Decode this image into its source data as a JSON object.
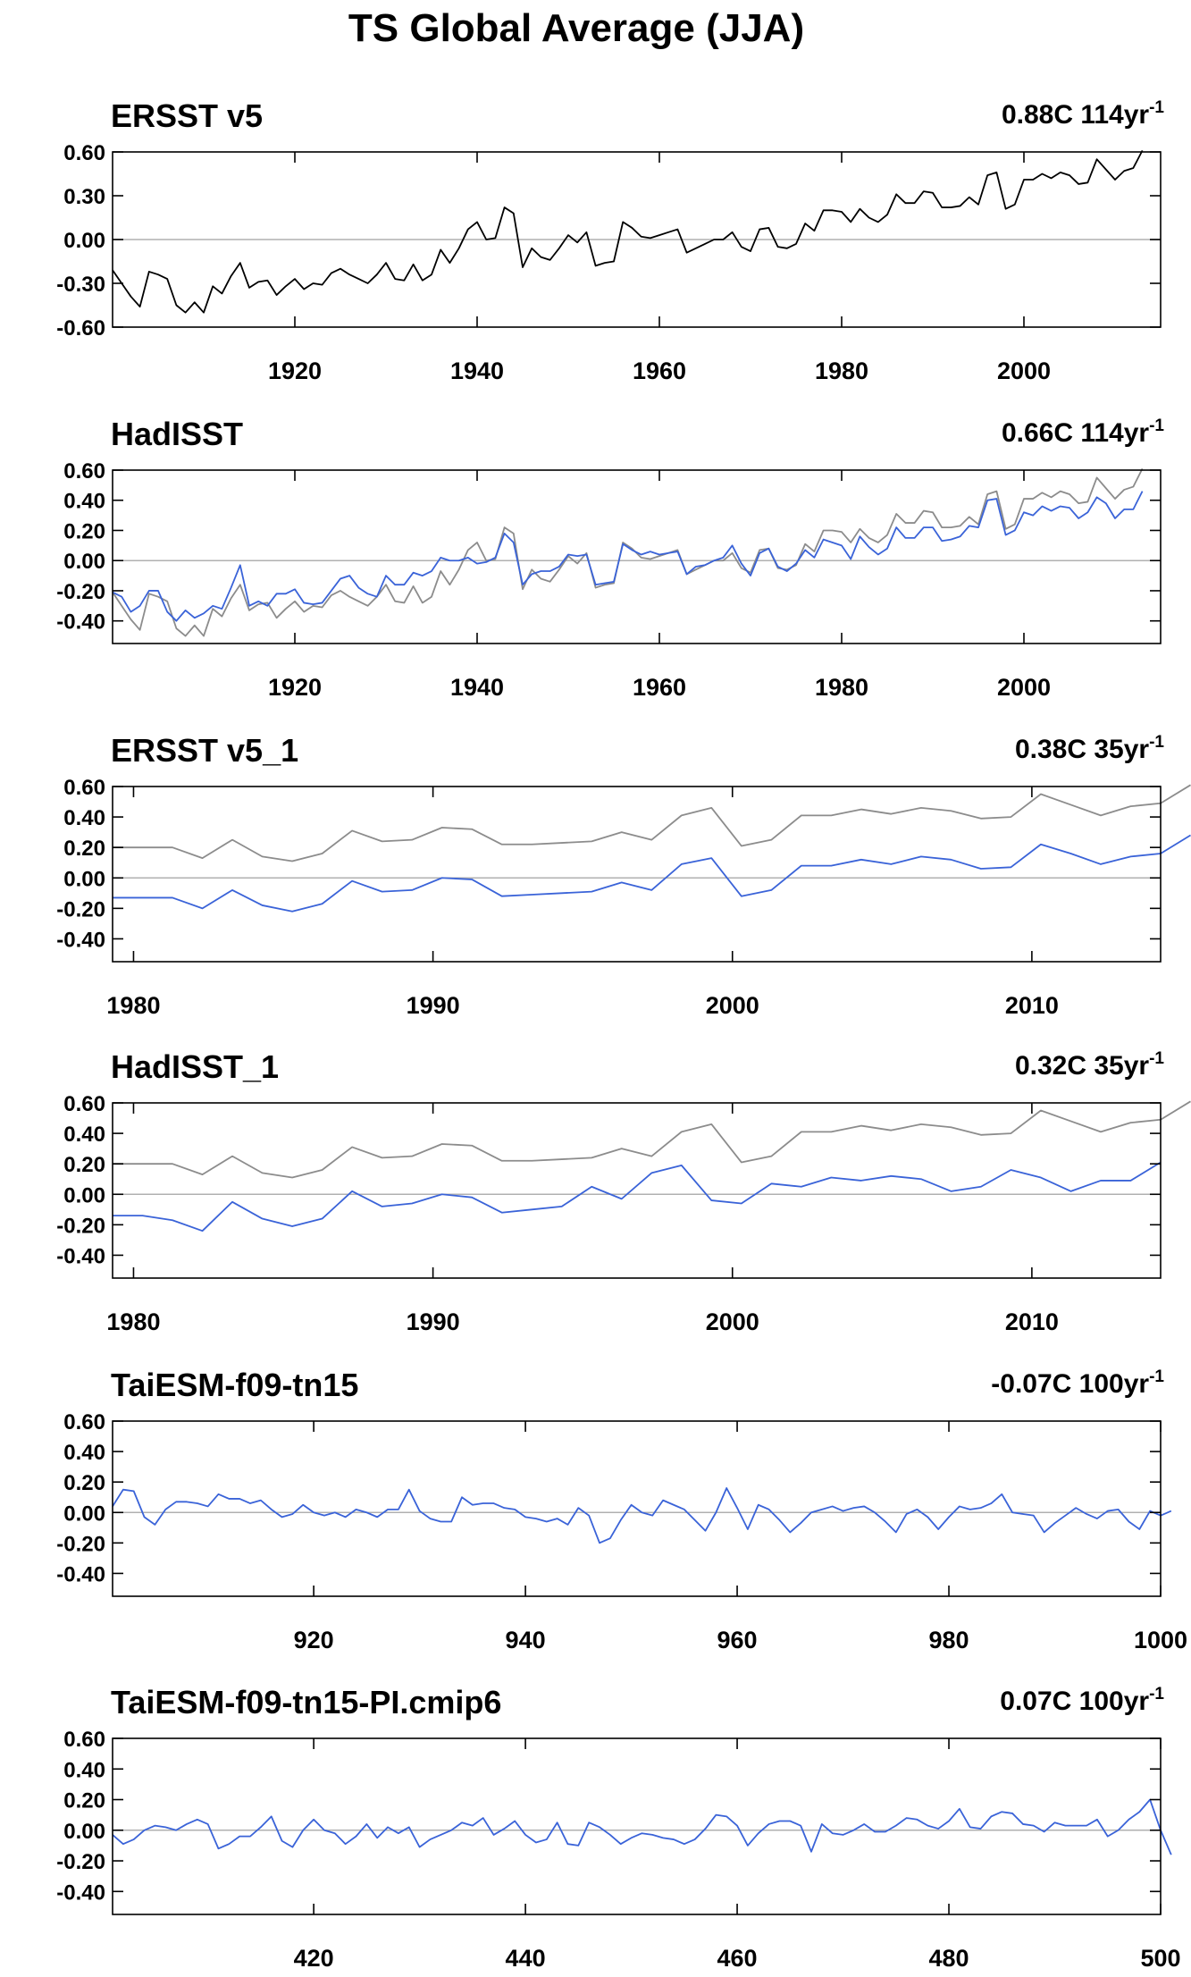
{
  "title": "TS Global Average (JJA)",
  "colors": {
    "obs": "#000000",
    "obs_ref": "#8c8c8c",
    "model": "#3a63d8",
    "zero_line": "#b0b0b0",
    "frame": "#000000"
  },
  "chart_data": [
    {
      "type": "line",
      "title": "ERSST v5",
      "trend": "0.88C 114yr",
      "trend_sup": "-1",
      "xlim": [
        1900,
        2015
      ],
      "ylim": [
        -0.6,
        0.6
      ],
      "yticks": [
        "0.60",
        "0.30",
        "0.00",
        "-0.30",
        "-0.60"
      ],
      "ytick_values": [
        0.6,
        0.3,
        0.0,
        -0.3,
        -0.6
      ],
      "xticks": [
        1920,
        1940,
        1960,
        1980,
        2000
      ],
      "series": [
        {
          "role": "obs",
          "x_start": 1900,
          "values": [
            -0.21,
            -0.3,
            -0.39,
            -0.46,
            -0.22,
            -0.24,
            -0.27,
            -0.45,
            -0.5,
            -0.43,
            -0.5,
            -0.32,
            -0.37,
            -0.25,
            -0.16,
            -0.33,
            -0.29,
            -0.28,
            -0.38,
            -0.32,
            -0.27,
            -0.34,
            -0.3,
            -0.31,
            -0.23,
            -0.2,
            -0.24,
            -0.27,
            -0.3,
            -0.24,
            -0.16,
            -0.27,
            -0.28,
            -0.17,
            -0.28,
            -0.24,
            -0.07,
            -0.16,
            -0.06,
            0.07,
            0.12,
            0.0,
            0.01,
            0.22,
            0.18,
            -0.19,
            -0.06,
            -0.12,
            -0.14,
            -0.06,
            0.03,
            -0.02,
            0.05,
            -0.18,
            -0.16,
            -0.15,
            0.12,
            0.08,
            0.02,
            0.01,
            0.03,
            0.05,
            0.07,
            -0.09,
            -0.06,
            -0.03,
            0.0,
            0.0,
            0.05,
            -0.05,
            -0.08,
            0.07,
            0.08,
            -0.05,
            -0.06,
            -0.03,
            0.11,
            0.06,
            0.2,
            0.2,
            0.19,
            0.12,
            0.21,
            0.15,
            0.12,
            0.17,
            0.31,
            0.25,
            0.25,
            0.33,
            0.32,
            0.22,
            0.22,
            0.23,
            0.29,
            0.24,
            0.44,
            0.46,
            0.21,
            0.24,
            0.41,
            0.41,
            0.45,
            0.42,
            0.46,
            0.44,
            0.38,
            0.39,
            0.55,
            0.48,
            0.41,
            0.47,
            0.49,
            0.61
          ]
        }
      ]
    },
    {
      "type": "line",
      "title": "HadISST",
      "trend": "0.66C 114yr",
      "trend_sup": "-1",
      "xlim": [
        1900,
        2015
      ],
      "ylim": [
        -0.55,
        0.6
      ],
      "yticks": [
        "0.60",
        "0.40",
        "0.20",
        "0.00",
        "-0.20",
        "-0.40"
      ],
      "ytick_values": [
        0.6,
        0.4,
        0.2,
        0.0,
        -0.2,
        -0.4
      ],
      "xticks": [
        1920,
        1940,
        1960,
        1980,
        2000
      ],
      "series": [
        {
          "role": "obs_ref",
          "x_start": 1900,
          "values": [
            -0.21,
            -0.3,
            -0.39,
            -0.46,
            -0.22,
            -0.24,
            -0.27,
            -0.45,
            -0.5,
            -0.43,
            -0.5,
            -0.32,
            -0.37,
            -0.25,
            -0.16,
            -0.33,
            -0.29,
            -0.28,
            -0.38,
            -0.32,
            -0.27,
            -0.34,
            -0.3,
            -0.31,
            -0.23,
            -0.2,
            -0.24,
            -0.27,
            -0.3,
            -0.24,
            -0.16,
            -0.27,
            -0.28,
            -0.17,
            -0.28,
            -0.24,
            -0.07,
            -0.16,
            -0.06,
            0.07,
            0.12,
            0.0,
            0.01,
            0.22,
            0.18,
            -0.19,
            -0.06,
            -0.12,
            -0.14,
            -0.06,
            0.03,
            -0.02,
            0.05,
            -0.18,
            -0.16,
            -0.15,
            0.12,
            0.08,
            0.02,
            0.01,
            0.03,
            0.05,
            0.07,
            -0.09,
            -0.06,
            -0.03,
            0.0,
            0.0,
            0.05,
            -0.05,
            -0.08,
            0.07,
            0.08,
            -0.05,
            -0.06,
            -0.03,
            0.11,
            0.06,
            0.2,
            0.2,
            0.19,
            0.12,
            0.21,
            0.15,
            0.12,
            0.17,
            0.31,
            0.25,
            0.25,
            0.33,
            0.32,
            0.22,
            0.22,
            0.23,
            0.29,
            0.24,
            0.44,
            0.46,
            0.21,
            0.24,
            0.41,
            0.41,
            0.45,
            0.42,
            0.46,
            0.44,
            0.38,
            0.39,
            0.55,
            0.48,
            0.41,
            0.47,
            0.49,
            0.61
          ]
        },
        {
          "role": "model",
          "x_start": 1900,
          "values": [
            -0.21,
            -0.24,
            -0.34,
            -0.3,
            -0.2,
            -0.2,
            -0.34,
            -0.4,
            -0.33,
            -0.38,
            -0.35,
            -0.3,
            -0.32,
            -0.18,
            -0.03,
            -0.3,
            -0.27,
            -0.3,
            -0.22,
            -0.22,
            -0.19,
            -0.28,
            -0.29,
            -0.28,
            -0.2,
            -0.12,
            -0.1,
            -0.18,
            -0.22,
            -0.24,
            -0.1,
            -0.16,
            -0.16,
            -0.08,
            -0.1,
            -0.07,
            0.02,
            0.0,
            0.0,
            0.02,
            -0.02,
            -0.01,
            0.02,
            0.18,
            0.12,
            -0.16,
            -0.09,
            -0.07,
            -0.07,
            -0.04,
            0.04,
            0.03,
            0.04,
            -0.16,
            -0.15,
            -0.14,
            0.11,
            0.07,
            0.04,
            0.06,
            0.04,
            0.05,
            0.06,
            -0.09,
            -0.04,
            -0.03,
            0.0,
            0.02,
            0.1,
            -0.02,
            -0.1,
            0.05,
            0.08,
            -0.04,
            -0.07,
            -0.02,
            0.07,
            0.02,
            0.14,
            0.12,
            0.1,
            0.01,
            0.16,
            0.09,
            0.04,
            0.08,
            0.22,
            0.15,
            0.15,
            0.22,
            0.22,
            0.13,
            0.14,
            0.16,
            0.23,
            0.22,
            0.4,
            0.41,
            0.17,
            0.2,
            0.32,
            0.3,
            0.36,
            0.33,
            0.36,
            0.35,
            0.28,
            0.32,
            0.42,
            0.38,
            0.28,
            0.34,
            0.34,
            0.46
          ]
        }
      ]
    },
    {
      "type": "line",
      "title": "ERSST v5_1",
      "trend": "0.38C 35yr",
      "trend_sup": "-1",
      "xlim": [
        1979.3,
        2014.3
      ],
      "ylim": [
        -0.55,
        0.6
      ],
      "yticks": [
        "0.60",
        "0.40",
        "0.20",
        "0.00",
        "-0.20",
        "-0.40"
      ],
      "ytick_values": [
        0.6,
        0.4,
        0.2,
        0.0,
        -0.2,
        -0.4
      ],
      "xticks": [
        1980,
        1990,
        2000,
        2010
      ],
      "series": [
        {
          "role": "obs_ref",
          "x_start": 1979.3,
          "values": [
            0.2,
            0.2,
            0.2,
            0.13,
            0.25,
            0.14,
            0.11,
            0.16,
            0.31,
            0.24,
            0.25,
            0.33,
            0.32,
            0.22,
            0.22,
            0.23,
            0.24,
            0.3,
            0.25,
            0.41,
            0.46,
            0.21,
            0.25,
            0.41,
            0.41,
            0.45,
            0.42,
            0.46,
            0.44,
            0.39,
            0.4,
            0.55,
            0.48,
            0.41,
            0.47,
            0.49,
            0.61
          ]
        },
        {
          "role": "model",
          "x_start": 1979.3,
          "values": [
            -0.13,
            -0.13,
            -0.13,
            -0.2,
            -0.08,
            -0.18,
            -0.22,
            -0.17,
            -0.02,
            -0.09,
            -0.08,
            0.0,
            -0.01,
            -0.12,
            -0.11,
            -0.1,
            -0.09,
            -0.03,
            -0.08,
            0.09,
            0.13,
            -0.12,
            -0.08,
            0.08,
            0.08,
            0.12,
            0.09,
            0.14,
            0.12,
            0.06,
            0.07,
            0.22,
            0.16,
            0.09,
            0.14,
            0.16,
            0.28
          ]
        }
      ]
    },
    {
      "type": "line",
      "title": "HadISST_1",
      "trend": "0.32C 35yr",
      "trend_sup": "-1",
      "xlim": [
        1979.3,
        2014.3
      ],
      "ylim": [
        -0.55,
        0.6
      ],
      "yticks": [
        "0.60",
        "0.40",
        "0.20",
        "0.00",
        "-0.20",
        "-0.40"
      ],
      "ytick_values": [
        0.6,
        0.4,
        0.2,
        0.0,
        -0.2,
        -0.4
      ],
      "xticks": [
        1980,
        1990,
        2000,
        2010
      ],
      "series": [
        {
          "role": "obs_ref",
          "x_start": 1979.3,
          "values": [
            0.2,
            0.2,
            0.2,
            0.13,
            0.25,
            0.14,
            0.11,
            0.16,
            0.31,
            0.24,
            0.25,
            0.33,
            0.32,
            0.22,
            0.22,
            0.23,
            0.24,
            0.3,
            0.25,
            0.41,
            0.46,
            0.21,
            0.25,
            0.41,
            0.41,
            0.45,
            0.42,
            0.46,
            0.44,
            0.39,
            0.4,
            0.55,
            0.48,
            0.41,
            0.47,
            0.49,
            0.61
          ]
        },
        {
          "role": "model",
          "x_start": 1979.3,
          "values": [
            -0.14,
            -0.14,
            -0.17,
            -0.24,
            -0.05,
            -0.16,
            -0.21,
            -0.16,
            0.02,
            -0.08,
            -0.06,
            0.0,
            -0.02,
            -0.12,
            -0.1,
            -0.08,
            0.05,
            -0.03,
            0.14,
            0.19,
            -0.04,
            -0.06,
            0.07,
            0.05,
            0.11,
            0.09,
            0.12,
            0.1,
            0.02,
            0.05,
            0.16,
            0.11,
            0.02,
            0.09,
            0.09,
            0.21
          ]
        }
      ]
    },
    {
      "type": "line",
      "title": "TaiESM-f09-tn15",
      "trend": "-0.07C 100yr",
      "trend_sup": "-1",
      "xlim": [
        901,
        1000
      ],
      "ylim": [
        -0.55,
        0.6
      ],
      "yticks": [
        "0.60",
        "0.40",
        "0.20",
        "0.00",
        "-0.20",
        "-0.40"
      ],
      "ytick_values": [
        0.6,
        0.4,
        0.2,
        0.0,
        -0.2,
        -0.4
      ],
      "xticks": [
        920,
        940,
        960,
        980,
        1000
      ],
      "series": [
        {
          "role": "model",
          "x_start": 901,
          "values": [
            0.04,
            0.15,
            0.14,
            -0.03,
            -0.08,
            0.02,
            0.07,
            0.07,
            0.06,
            0.04,
            0.12,
            0.09,
            0.09,
            0.06,
            0.08,
            0.02,
            -0.03,
            -0.01,
            0.05,
            0.0,
            -0.02,
            0.0,
            -0.03,
            0.02,
            0.0,
            -0.03,
            0.02,
            0.02,
            0.15,
            0.01,
            -0.04,
            -0.06,
            -0.06,
            0.1,
            0.05,
            0.06,
            0.06,
            0.03,
            0.02,
            -0.03,
            -0.04,
            -0.06,
            -0.04,
            -0.08,
            0.03,
            -0.02,
            -0.2,
            -0.17,
            -0.05,
            0.05,
            0.0,
            -0.02,
            0.08,
            0.05,
            0.02,
            -0.05,
            -0.12,
            0.0,
            0.16,
            0.03,
            -0.11,
            0.05,
            0.02,
            -0.05,
            -0.13,
            -0.07,
            0.0,
            0.02,
            0.04,
            0.01,
            0.03,
            0.04,
            0.0,
            -0.06,
            -0.13,
            -0.01,
            0.02,
            -0.03,
            -0.11,
            -0.03,
            0.04,
            0.02,
            0.03,
            0.06,
            0.12,
            0.0,
            -0.01,
            -0.02,
            -0.13,
            -0.07,
            -0.02,
            0.03,
            -0.01,
            -0.04,
            0.01,
            0.02,
            -0.06,
            -0.11,
            0.01,
            -0.02,
            0.01
          ]
        }
      ]
    },
    {
      "type": "line",
      "title": "TaiESM-f09-tn15-PI.cmip6",
      "trend": "0.07C 100yr",
      "trend_sup": "-1",
      "xlim": [
        401,
        500
      ],
      "ylim": [
        -0.55,
        0.6
      ],
      "yticks": [
        "0.60",
        "0.40",
        "0.20",
        "0.00",
        "-0.20",
        "-0.40"
      ],
      "ytick_values": [
        0.6,
        0.4,
        0.2,
        0.0,
        -0.2,
        -0.4
      ],
      "xticks": [
        420,
        440,
        460,
        480,
        500
      ],
      "series": [
        {
          "role": "model",
          "x_start": 401,
          "values": [
            -0.03,
            -0.09,
            -0.06,
            0.0,
            0.03,
            0.02,
            0.0,
            0.04,
            0.07,
            0.04,
            -0.12,
            -0.09,
            -0.04,
            -0.04,
            0.02,
            0.09,
            -0.07,
            -0.11,
            0.0,
            0.07,
            0.0,
            -0.02,
            -0.09,
            -0.04,
            0.04,
            -0.05,
            0.02,
            -0.02,
            0.02,
            -0.11,
            -0.06,
            -0.03,
            0.0,
            0.05,
            0.03,
            0.08,
            -0.03,
            0.01,
            0.06,
            -0.03,
            -0.08,
            -0.06,
            0.05,
            -0.09,
            -0.1,
            0.05,
            0.02,
            -0.03,
            -0.09,
            -0.05,
            -0.02,
            -0.03,
            -0.05,
            -0.06,
            -0.09,
            -0.06,
            0.01,
            0.1,
            0.09,
            0.03,
            -0.1,
            -0.02,
            0.04,
            0.06,
            0.06,
            0.03,
            -0.14,
            0.04,
            -0.02,
            -0.03,
            0.0,
            0.04,
            -0.01,
            -0.01,
            0.03,
            0.08,
            0.07,
            0.03,
            0.01,
            0.06,
            0.14,
            0.02,
            0.01,
            0.09,
            0.12,
            0.11,
            0.04,
            0.03,
            -0.01,
            0.05,
            0.03,
            0.03,
            0.03,
            0.07,
            -0.04,
            0.0,
            0.07,
            0.12,
            0.2,
            0.0,
            -0.16
          ]
        }
      ]
    }
  ]
}
